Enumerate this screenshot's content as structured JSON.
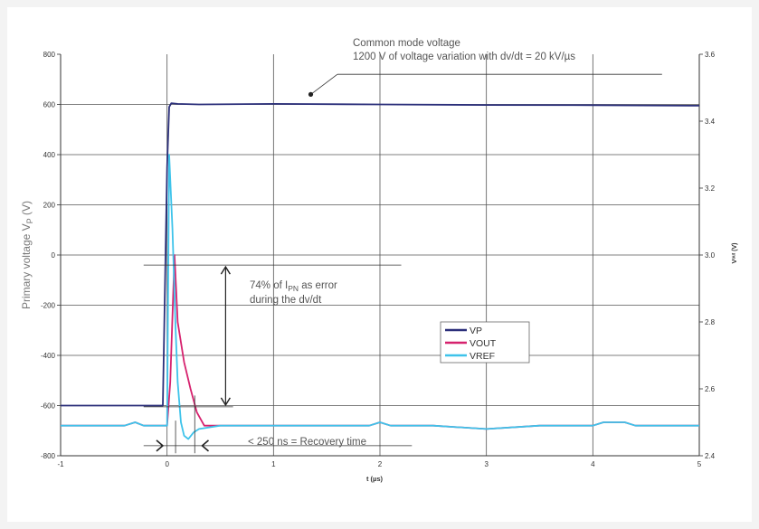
{
  "chart_data": {
    "type": "line",
    "xlabel": "t (µs)",
    "ylabel_main": "Primary voltage V",
    "ylabel_sub": "P",
    "ylabel_unit": " (V)",
    "y2label": "Vᵒᵘᵗ (V)",
    "xlim": [
      -1,
      5
    ],
    "ylim": [
      -800,
      800
    ],
    "y2lim": [
      2.4,
      3.6
    ],
    "x_ticks": [
      "-1",
      "0",
      "1",
      "2",
      "3",
      "4",
      "5"
    ],
    "y_ticks": [
      "800",
      "600",
      "400",
      "200",
      "0",
      "-200",
      "-400",
      "-600",
      "-800"
    ],
    "y2_ticks": [
      "3.6",
      "3.4",
      "3.2",
      "3.0",
      "2.8",
      "2.6",
      "2.4"
    ],
    "grid": true,
    "legend_position": "center-right",
    "series": [
      {
        "name": "VP",
        "color": "#2b2f7a",
        "axis": "left",
        "x": [
          -1,
          -0.2,
          -0.04,
          0,
          0.02,
          0.04,
          0.1,
          0.3,
          1,
          2,
          3,
          4,
          5
        ],
        "y": [
          -600,
          -600,
          -600,
          350,
          590,
          605,
          602,
          600,
          602,
          600,
          598,
          597,
          595
        ]
      },
      {
        "name": "VOUT",
        "color": "#d6226e",
        "axis": "right",
        "x": [
          -1,
          -0.4,
          -0.3,
          -0.22,
          -0.12,
          -0.05,
          0,
          0.03,
          0.07,
          0.1,
          0.16,
          0.22,
          0.28,
          0.35,
          0.5,
          1,
          1.5,
          1.9,
          2.0,
          2.1,
          2.5,
          3.0,
          3.5,
          4.0,
          4.1,
          4.3,
          4.4,
          5
        ],
        "y": [
          2.49,
          2.49,
          2.5,
          2.49,
          2.49,
          2.49,
          2.49,
          2.62,
          3.0,
          2.8,
          2.68,
          2.6,
          2.53,
          2.49,
          2.49,
          2.49,
          2.49,
          2.49,
          2.5,
          2.49,
          2.49,
          2.48,
          2.49,
          2.49,
          2.5,
          2.5,
          2.49,
          2.49
        ]
      },
      {
        "name": "VREF",
        "color": "#3ec3ea",
        "axis": "right",
        "x": [
          -1,
          -0.4,
          -0.3,
          -0.22,
          -0.12,
          -0.05,
          0,
          0.02,
          0.05,
          0.08,
          0.1,
          0.13,
          0.16,
          0.2,
          0.25,
          0.3,
          0.5,
          1,
          1.5,
          1.9,
          2.0,
          2.1,
          2.5,
          3.0,
          3.5,
          4.0,
          4.1,
          4.3,
          4.4,
          5
        ],
        "y": [
          2.49,
          2.49,
          2.5,
          2.49,
          2.49,
          2.49,
          2.49,
          3.3,
          3.08,
          2.78,
          2.62,
          2.5,
          2.46,
          2.45,
          2.47,
          2.48,
          2.49,
          2.49,
          2.49,
          2.49,
          2.5,
          2.49,
          2.49,
          2.48,
          2.49,
          2.49,
          2.5,
          2.5,
          2.49,
          2.49
        ]
      }
    ],
    "annotations": {
      "common_mode_line1": "Common mode voltage",
      "common_mode_line2": "1200 V of voltage variation with dv/dt = 20 kV/µs",
      "error_line1_prefix": "74% of I",
      "error_line1_sub": "PN",
      "error_line1_suffix": " as error",
      "error_line2": "during the dv/dt",
      "recovery": "< 250 ns = Recovery time"
    }
  }
}
